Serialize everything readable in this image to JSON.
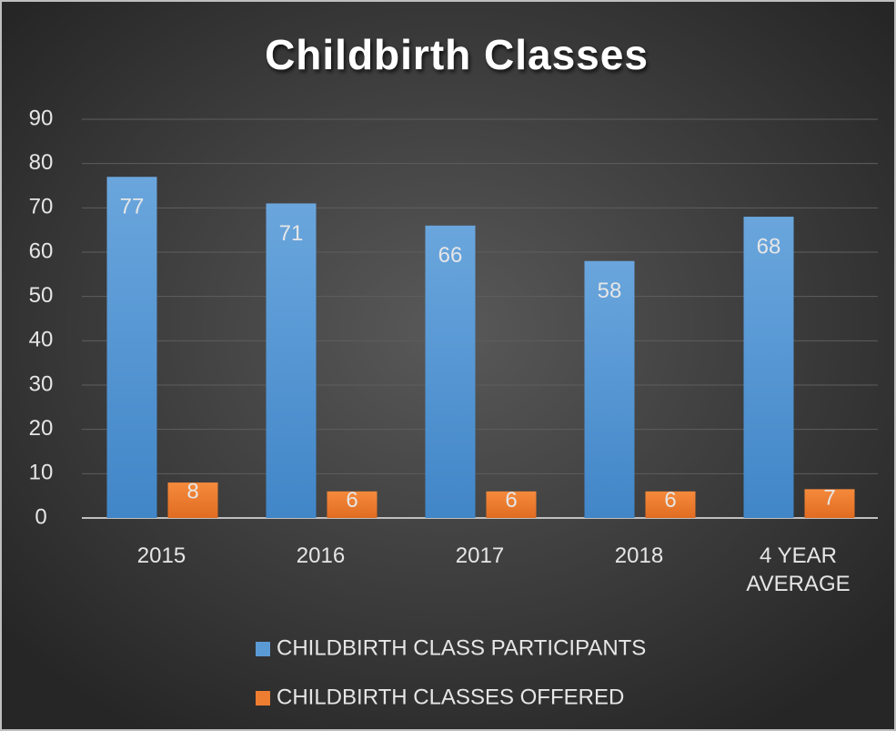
{
  "chart_data": {
    "type": "bar",
    "title": "Childbirth Classes",
    "categories": [
      "2015",
      "2016",
      "2017",
      "2018",
      "4 YEAR AVERAGE"
    ],
    "series": [
      {
        "name": "CHILDBIRTH CLASS PARTICIPANTS",
        "color": "#5b9bd5",
        "values": [
          77,
          71,
          66,
          58,
          68
        ]
      },
      {
        "name": "CHILDBIRTH CLASSES OFFERED",
        "color": "#ed7d31",
        "values": [
          8,
          6,
          6,
          6,
          6.5
        ],
        "value_labels": [
          "8",
          "6",
          "6",
          "6",
          "7"
        ]
      }
    ],
    "ylim": [
      0,
      90
    ],
    "yticks": [
      0,
      10,
      20,
      30,
      40,
      50,
      60,
      70,
      80,
      90
    ],
    "grid": true,
    "legend": "bottom"
  }
}
